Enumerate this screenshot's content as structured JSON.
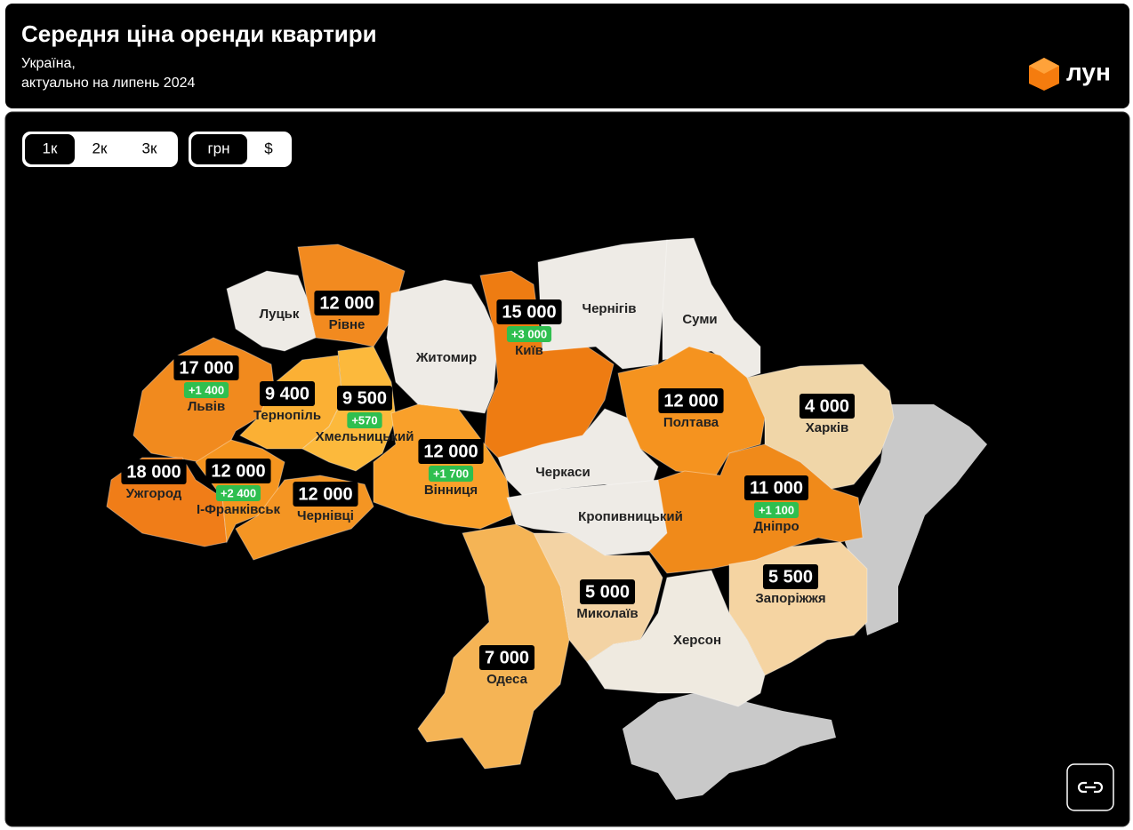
{
  "header": {
    "title": "Середня ціна оренди квартири",
    "subtitle_lines": [
      "Україна,",
      "актуально на липень 2024"
    ],
    "logo": "лун"
  },
  "room_toggle": [
    "1к",
    "2к",
    "3к"
  ],
  "currency_toggle": [
    "грн",
    "$"
  ],
  "regions": [
    {
      "name": "Луцьк"
    },
    {
      "name": "Рівне",
      "price": "12 000"
    },
    {
      "name": "Житомир"
    },
    {
      "name": "Київ",
      "price": "15 000",
      "change": "+3 000"
    },
    {
      "name": "Чернігів"
    },
    {
      "name": "Суми"
    },
    {
      "name": "Полтава",
      "price": "12 000"
    },
    {
      "name": "Харків",
      "price": "4 000"
    },
    {
      "name": "Львів",
      "price": "17 000",
      "change": "+1 400"
    },
    {
      "name": "Тернопіль",
      "price": "9 400"
    },
    {
      "name": "Хмельницький",
      "price": "9 500",
      "change": "+570"
    },
    {
      "name": "Вінниця",
      "price": "12 000",
      "change": "+1 700"
    },
    {
      "name": "Ужгород",
      "price": "18 000"
    },
    {
      "name": "І-Франківськ",
      "price": "12 000",
      "change": "+2 400"
    },
    {
      "name": "Чернівці",
      "price": "12 000"
    },
    {
      "name": "Черкаси"
    },
    {
      "name": "Кропивницький"
    },
    {
      "name": "Дніпро",
      "price": "11 000",
      "change": "+1 100"
    },
    {
      "name": "Запоріжжя",
      "price": "5 500"
    },
    {
      "name": "Миколаїв",
      "price": "5 000"
    },
    {
      "name": "Херсон"
    },
    {
      "name": "Одеса",
      "price": "7 000"
    }
  ]
}
